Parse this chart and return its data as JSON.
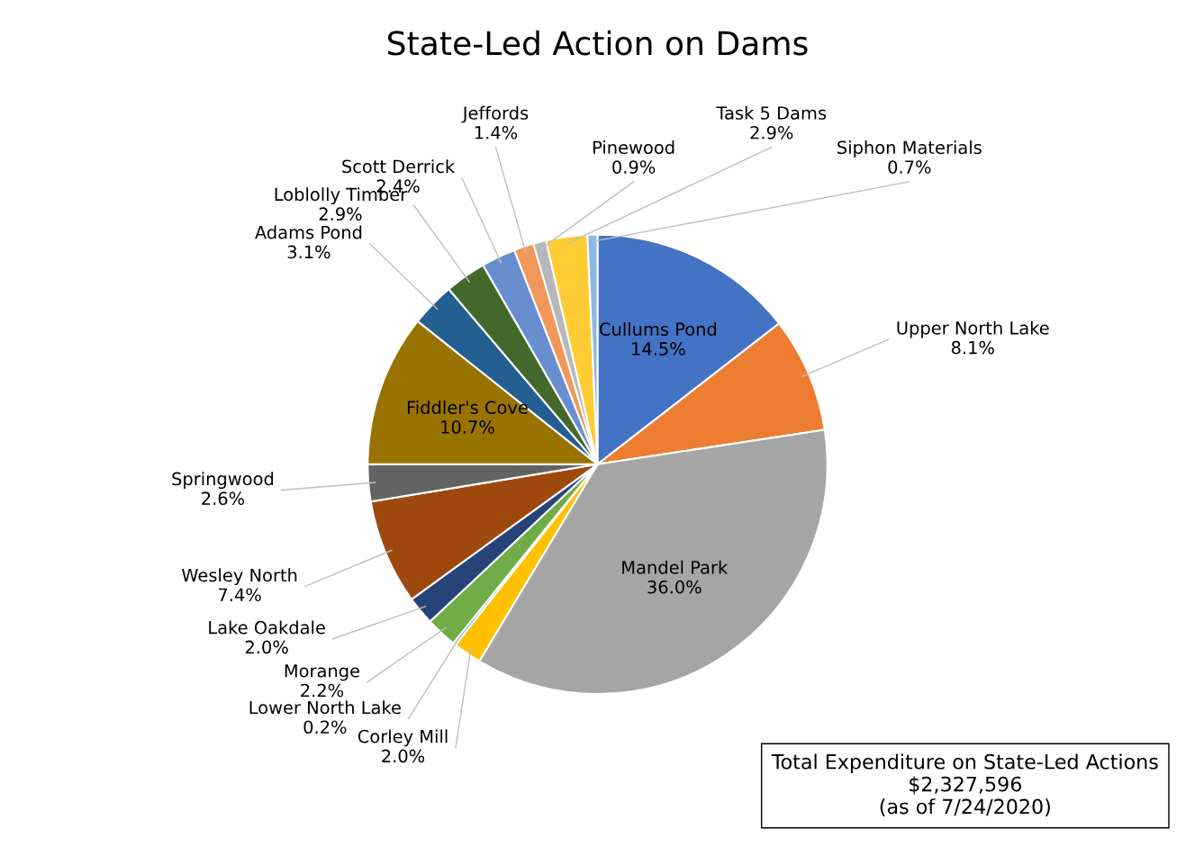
{
  "chart_data": {
    "type": "pie",
    "title": "State-Led Action on Dams",
    "categories": [
      "Cullums Pond",
      "Upper North Lake",
      "Mandel Park",
      "Corley Mill",
      "Lower North Lake",
      "Morange",
      "Lake Oakdale",
      "Wesley North",
      "Springwood",
      "Fiddler's Cove",
      "Adams Pond",
      "Loblolly Timber",
      "Scott Derrick",
      "Jeffords",
      "Pinewood",
      "Task 5 Dams",
      "Siphon Materials"
    ],
    "values": [
      14.5,
      8.1,
      36.0,
      2.0,
      0.2,
      2.2,
      2.0,
      7.4,
      2.6,
      10.7,
      3.1,
      2.9,
      2.4,
      1.4,
      0.9,
      2.9,
      0.7
    ],
    "value_labels": [
      "14.5%",
      "8.1%",
      "36.0%",
      "2.0%",
      "0.2%",
      "2.2%",
      "2.0%",
      "7.4%",
      "2.6%",
      "10.7%",
      "3.1%",
      "2.9%",
      "2.4%",
      "1.4%",
      "0.9%",
      "2.9%",
      "0.7%"
    ],
    "colors": [
      "#4472c4",
      "#ed7d31",
      "#a5a5a5",
      "#ffc000",
      "#5b9bd5",
      "#70ad47",
      "#264478",
      "#9e480e",
      "#636363",
      "#997300",
      "#255e91",
      "#43682b",
      "#698ed0",
      "#f1975a",
      "#b7b7b7",
      "#ffcd33",
      "#8cb8e3"
    ],
    "annotations": [
      "Total Expenditure on State-Led Actions\n$2,327,596\n(as of 7/24/2020)"
    ],
    "legend": false
  }
}
